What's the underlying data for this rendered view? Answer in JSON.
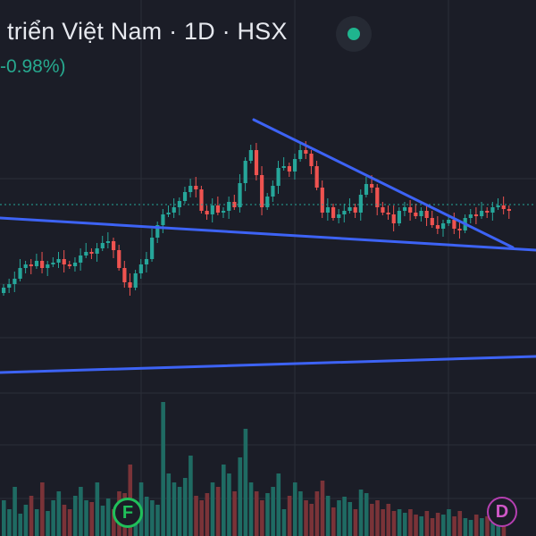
{
  "header": {
    "title": "triển Việt Nam · 1D · HSX",
    "change": "-0.98%)",
    "status": "market-open-dot"
  },
  "markers": {
    "financials": "F",
    "dividends": "D"
  },
  "colors": {
    "up": "#26a69a",
    "down": "#ef5350",
    "trendline": "#3d63f5",
    "background": "#1b1d27",
    "grid": "#2b2e39",
    "price_line": "#26a69a"
  },
  "icons": {
    "status": "green-dot-icon"
  }
}
